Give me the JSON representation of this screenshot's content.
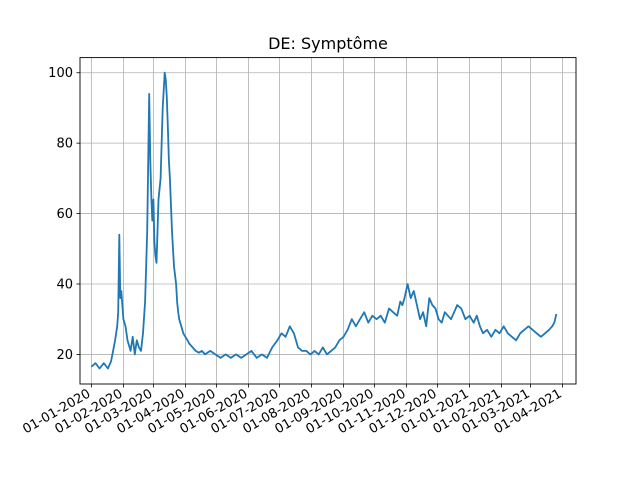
{
  "chart_data": {
    "type": "line",
    "title": "DE: Symptôme",
    "xlabel": "",
    "ylabel": "",
    "grid": true,
    "legend": "none",
    "xlim": [
      "2019-12-21",
      "2021-04-14"
    ],
    "ylim": [
      11.6,
      104.3
    ],
    "yticks": [
      20,
      40,
      60,
      80,
      100
    ],
    "xticks": [
      "01-01-2020",
      "01-02-2020",
      "01-03-2020",
      "01-04-2020",
      "01-05-2020",
      "01-06-2020",
      "01-07-2020",
      "01-08-2020",
      "01-09-2020",
      "01-10-2020",
      "01-11-2020",
      "01-12-2020",
      "01-01-2021",
      "01-02-2021",
      "01-03-2021",
      "01-04-2021"
    ],
    "line_color": "#1f77b4",
    "series": [
      {
        "x": [
          "2020-01-01",
          "2020-01-05",
          "2020-01-09",
          "2020-01-13",
          "2020-01-17",
          "2020-01-20",
          "2020-01-22",
          "2020-01-24",
          "2020-01-26",
          "2020-01-27",
          "2020-01-28",
          "2020-01-29",
          "2020-01-30",
          "2020-02-01",
          "2020-02-03",
          "2020-02-05",
          "2020-02-08",
          "2020-02-10",
          "2020-02-12",
          "2020-02-14",
          "2020-02-16",
          "2020-02-18",
          "2020-02-20",
          "2020-02-22",
          "2020-02-24",
          "2020-02-26",
          "2020-02-27",
          "2020-02-28",
          "2020-02-29",
          "2020-03-01",
          "2020-03-02",
          "2020-03-03",
          "2020-03-04",
          "2020-03-06",
          "2020-03-08",
          "2020-03-10",
          "2020-03-12",
          "2020-03-13",
          "2020-03-14",
          "2020-03-15",
          "2020-03-16",
          "2020-03-17",
          "2020-03-19",
          "2020-03-21",
          "2020-03-23",
          "2020-03-24",
          "2020-03-25",
          "2020-03-26",
          "2020-03-28",
          "2020-03-30",
          "2020-04-01",
          "2020-04-03",
          "2020-04-05",
          "2020-04-08",
          "2020-04-11",
          "2020-04-14",
          "2020-04-17",
          "2020-04-20",
          "2020-04-25",
          "2020-04-30",
          "2020-05-05",
          "2020-05-10",
          "2020-05-15",
          "2020-05-20",
          "2020-05-25",
          "2020-05-30",
          "2020-06-04",
          "2020-06-09",
          "2020-06-14",
          "2020-06-19",
          "2020-06-24",
          "2020-06-29",
          "2020-07-03",
          "2020-07-07",
          "2020-07-11",
          "2020-07-15",
          "2020-07-19",
          "2020-07-23",
          "2020-07-27",
          "2020-07-31",
          "2020-08-04",
          "2020-08-08",
          "2020-08-12",
          "2020-08-16",
          "2020-08-20",
          "2020-08-24",
          "2020-08-28",
          "2020-09-01",
          "2020-09-05",
          "2020-09-09",
          "2020-09-13",
          "2020-09-17",
          "2020-09-21",
          "2020-09-25",
          "2020-09-29",
          "2020-10-03",
          "2020-10-07",
          "2020-10-11",
          "2020-10-15",
          "2020-10-19",
          "2020-10-23",
          "2020-10-26",
          "2020-10-28",
          "2020-10-30",
          "2020-11-02",
          "2020-11-05",
          "2020-11-08",
          "2020-11-11",
          "2020-11-14",
          "2020-11-17",
          "2020-11-20",
          "2020-11-23",
          "2020-11-26",
          "2020-11-29",
          "2020-12-02",
          "2020-12-05",
          "2020-12-08",
          "2020-12-11",
          "2020-12-14",
          "2020-12-17",
          "2020-12-20",
          "2020-12-24",
          "2020-12-28",
          "2021-01-01",
          "2021-01-03",
          "2021-01-05",
          "2021-01-08",
          "2021-01-11",
          "2021-01-14",
          "2021-01-18",
          "2021-01-22",
          "2021-01-26",
          "2021-01-30",
          "2021-02-03",
          "2021-02-07",
          "2021-02-11",
          "2021-02-15",
          "2021-02-19",
          "2021-02-23",
          "2021-02-27",
          "2021-03-03",
          "2021-03-07",
          "2021-03-11",
          "2021-03-15",
          "2021-03-19",
          "2021-03-22",
          "2021-03-24",
          "2021-03-26"
        ],
        "y": [
          16.5,
          17.5,
          16,
          17.5,
          16,
          18,
          21,
          24,
          28,
          32,
          54,
          36,
          38,
          30,
          28,
          24,
          21,
          25,
          20,
          24,
          22,
          21,
          26,
          35,
          55,
          94,
          75,
          65,
          58,
          64,
          52,
          48,
          46,
          64,
          70,
          90,
          100,
          98,
          93,
          85,
          75,
          70,
          55,
          45,
          40,
          35,
          32,
          30,
          28,
          26,
          25,
          24,
          23,
          22,
          21,
          20.5,
          21,
          20,
          21,
          20,
          19,
          20,
          19,
          20,
          19,
          20,
          21,
          19,
          20,
          19,
          22,
          24,
          26,
          25,
          28,
          26,
          22,
          21,
          21,
          20,
          21,
          20,
          22,
          20,
          21,
          22,
          24,
          25,
          27,
          30,
          28,
          30,
          32,
          29,
          31,
          30,
          31,
          29,
          33,
          32,
          31,
          35,
          34,
          36,
          40,
          36,
          38,
          34,
          30,
          32,
          28,
          36,
          34,
          33,
          30,
          29,
          32,
          31,
          30,
          32,
          34,
          33,
          30,
          31,
          30,
          29,
          31,
          28,
          26,
          27,
          25,
          27,
          26,
          28,
          26,
          25,
          24,
          26,
          27,
          28,
          27,
          26,
          25,
          26,
          27,
          28,
          29,
          31.5
        ]
      }
    ]
  }
}
